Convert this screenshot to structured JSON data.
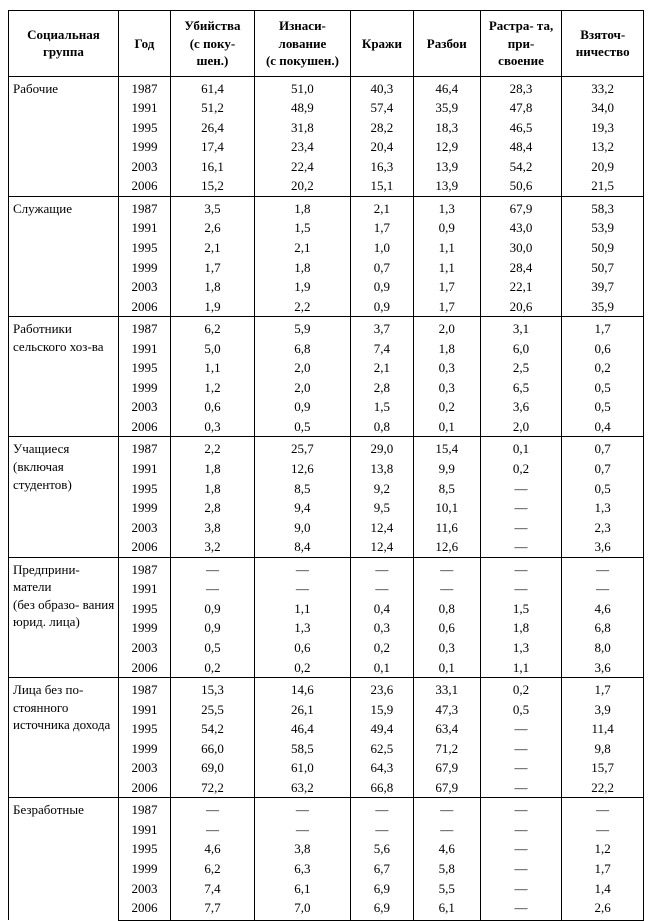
{
  "dash": "—",
  "headers": {
    "group": "Социальная группа",
    "year": "Год",
    "murder": "Убийства (с поку- шен.)",
    "rape": "Изнаси- лование (с покушен.)",
    "theft": "Кражи",
    "robbery": "Разбои",
    "embezzle": "Растра- та, при- своение",
    "bribery": "Взяточ- ничество"
  },
  "groups": [
    {
      "label": "Рабочие",
      "rows": [
        {
          "year": "1987",
          "murder": "61,4",
          "rape": "51,0",
          "theft": "40,3",
          "robbery": "46,4",
          "embezzle": "28,3",
          "bribery": "33,2"
        },
        {
          "year": "1991",
          "murder": "51,2",
          "rape": "48,9",
          "theft": "57,4",
          "robbery": "35,9",
          "embezzle": "47,8",
          "bribery": "34,0"
        },
        {
          "year": "1995",
          "murder": "26,4",
          "rape": "31,8",
          "theft": "28,2",
          "robbery": "18,3",
          "embezzle": "46,5",
          "bribery": "19,3"
        },
        {
          "year": "1999",
          "murder": "17,4",
          "rape": "23,4",
          "theft": "20,4",
          "robbery": "12,9",
          "embezzle": "48,4",
          "bribery": "13,2"
        },
        {
          "year": "2003",
          "murder": "16,1",
          "rape": "22,4",
          "theft": "16,3",
          "robbery": "13,9",
          "embezzle": "54,2",
          "bribery": "20,9"
        },
        {
          "year": "2006",
          "murder": "15,2",
          "rape": "20,2",
          "theft": "15,1",
          "robbery": "13,9",
          "embezzle": "50,6",
          "bribery": "21,5"
        }
      ]
    },
    {
      "label": "Служащие",
      "rows": [
        {
          "year": "1987",
          "murder": "3,5",
          "rape": "1,8",
          "theft": "2,1",
          "robbery": "1,3",
          "embezzle": "67,9",
          "bribery": "58,3"
        },
        {
          "year": "1991",
          "murder": "2,6",
          "rape": "1,5",
          "theft": "1,7",
          "robbery": "0,9",
          "embezzle": "43,0",
          "bribery": "53,9"
        },
        {
          "year": "1995",
          "murder": "2,1",
          "rape": "2,1",
          "theft": "1,0",
          "robbery": "1,1",
          "embezzle": "30,0",
          "bribery": "50,9"
        },
        {
          "year": "1999",
          "murder": "1,7",
          "rape": "1,8",
          "theft": "0,7",
          "robbery": "1,1",
          "embezzle": "28,4",
          "bribery": "50,7"
        },
        {
          "year": "2003",
          "murder": "1,8",
          "rape": "1,9",
          "theft": "0,9",
          "robbery": "1,7",
          "embezzle": "22,1",
          "bribery": "39,7"
        },
        {
          "year": "2006",
          "murder": "1,9",
          "rape": "2,2",
          "theft": "0,9",
          "robbery": "1,7",
          "embezzle": "20,6",
          "bribery": "35,9"
        }
      ]
    },
    {
      "label": "Работники сельского хоз-ва",
      "rows": [
        {
          "year": "1987",
          "murder": "6,2",
          "rape": "5,9",
          "theft": "3,7",
          "robbery": "2,0",
          "embezzle": "3,1",
          "bribery": "1,7"
        },
        {
          "year": "1991",
          "murder": "5,0",
          "rape": "6,8",
          "theft": "7,4",
          "robbery": "1,8",
          "embezzle": "6,0",
          "bribery": "0,6"
        },
        {
          "year": "1995",
          "murder": "1,1",
          "rape": "2,0",
          "theft": "2,1",
          "robbery": "0,3",
          "embezzle": "2,5",
          "bribery": "0,2"
        },
        {
          "year": "1999",
          "murder": "1,2",
          "rape": "2,0",
          "theft": "2,8",
          "robbery": "0,3",
          "embezzle": "6,5",
          "bribery": "0,5"
        },
        {
          "year": "2003",
          "murder": "0,6",
          "rape": "0,9",
          "theft": "1,5",
          "robbery": "0,2",
          "embezzle": "3,6",
          "bribery": "0,5"
        },
        {
          "year": "2006",
          "murder": "0,3",
          "rape": "0,5",
          "theft": "0,8",
          "robbery": "0,1",
          "embezzle": "2,0",
          "bribery": "0,4"
        }
      ]
    },
    {
      "label": "Учащиеся (включая студентов)",
      "rows": [
        {
          "year": "1987",
          "murder": "2,2",
          "rape": "25,7",
          "theft": "29,0",
          "robbery": "15,4",
          "embezzle": "0,1",
          "bribery": "0,7"
        },
        {
          "year": "1991",
          "murder": "1,8",
          "rape": "12,6",
          "theft": "13,8",
          "robbery": "9,9",
          "embezzle": "0,2",
          "bribery": "0,7"
        },
        {
          "year": "1995",
          "murder": "1,8",
          "rape": "8,5",
          "theft": "9,2",
          "robbery": "8,5",
          "embezzle": "—",
          "bribery": "0,5"
        },
        {
          "year": "1999",
          "murder": "2,8",
          "rape": "9,4",
          "theft": "9,5",
          "robbery": "10,1",
          "embezzle": "—",
          "bribery": "1,3"
        },
        {
          "year": "2003",
          "murder": "3,8",
          "rape": "9,0",
          "theft": "12,4",
          "robbery": "11,6",
          "embezzle": "—",
          "bribery": "2,3"
        },
        {
          "year": "2006",
          "murder": "3,2",
          "rape": "8,4",
          "theft": "12,4",
          "robbery": "12,6",
          "embezzle": "—",
          "bribery": "3,6"
        }
      ]
    },
    {
      "label": "Предприни- матели (без образо- вания юрид. лица)",
      "rows": [
        {
          "year": "1987",
          "murder": "—",
          "rape": "—",
          "theft": "—",
          "robbery": "—",
          "embezzle": "—",
          "bribery": "—"
        },
        {
          "year": "1991",
          "murder": "—",
          "rape": "—",
          "theft": "—",
          "robbery": "—",
          "embezzle": "—",
          "bribery": "—"
        },
        {
          "year": "1995",
          "murder": "0,9",
          "rape": "1,1",
          "theft": "0,4",
          "robbery": "0,8",
          "embezzle": "1,5",
          "bribery": "4,6"
        },
        {
          "year": "1999",
          "murder": "0,9",
          "rape": "1,3",
          "theft": "0,3",
          "robbery": "0,6",
          "embezzle": "1,8",
          "bribery": "6,8"
        },
        {
          "year": "2003",
          "murder": "0,5",
          "rape": "0,6",
          "theft": "0,2",
          "robbery": "0,3",
          "embezzle": "1,3",
          "bribery": "8,0"
        },
        {
          "year": "2006",
          "murder": "0,2",
          "rape": "0,2",
          "theft": "0,1",
          "robbery": "0,1",
          "embezzle": "1,1",
          "bribery": "3,6"
        }
      ]
    },
    {
      "label": "Лица без по- стоянного источника дохода",
      "rows": [
        {
          "year": "1987",
          "murder": "15,3",
          "rape": "14,6",
          "theft": "23,6",
          "robbery": "33,1",
          "embezzle": "0,2",
          "bribery": "1,7"
        },
        {
          "year": "1991",
          "murder": "25,5",
          "rape": "26,1",
          "theft": "15,9",
          "robbery": "47,3",
          "embezzle": "0,5",
          "bribery": "3,9"
        },
        {
          "year": "1995",
          "murder": "54,2",
          "rape": "46,4",
          "theft": "49,4",
          "robbery": "63,4",
          "embezzle": "—",
          "bribery": "11,4"
        },
        {
          "year": "1999",
          "murder": "66,0",
          "rape": "58,5",
          "theft": "62,5",
          "robbery": "71,2",
          "embezzle": "—",
          "bribery": "9,8"
        },
        {
          "year": "2003",
          "murder": "69,0",
          "rape": "61,0",
          "theft": "64,3",
          "robbery": "67,9",
          "embezzle": "—",
          "bribery": "15,7"
        },
        {
          "year": "2006",
          "murder": "72,2",
          "rape": "63,2",
          "theft": "66,8",
          "robbery": "67,9",
          "embezzle": "—",
          "bribery": "22,2"
        }
      ]
    },
    {
      "label": "Безработные",
      "rows": [
        {
          "year": "1987",
          "murder": "—",
          "rape": "—",
          "theft": "—",
          "robbery": "—",
          "embezzle": "—",
          "bribery": "—"
        },
        {
          "year": "1991",
          "murder": "—",
          "rape": "—",
          "theft": "—",
          "robbery": "—",
          "embezzle": "—",
          "bribery": "—"
        },
        {
          "year": "1995",
          "murder": "4,6",
          "rape": "3,8",
          "theft": "5,6",
          "robbery": "4,6",
          "embezzle": "—",
          "bribery": "1,2"
        },
        {
          "year": "1999",
          "murder": "6,2",
          "rape": "6,3",
          "theft": "6,7",
          "robbery": "5,8",
          "embezzle": "—",
          "bribery": "1,7"
        },
        {
          "year": "2003",
          "murder": "7,4",
          "rape": "6,1",
          "theft": "6,9",
          "robbery": "5,5",
          "embezzle": "—",
          "bribery": "1,4"
        },
        {
          "year": "2006",
          "murder": "7,7",
          "rape": "7,0",
          "theft": "6,9",
          "robbery": "6,1",
          "embezzle": "—",
          "bribery": "2,6"
        }
      ]
    }
  ]
}
